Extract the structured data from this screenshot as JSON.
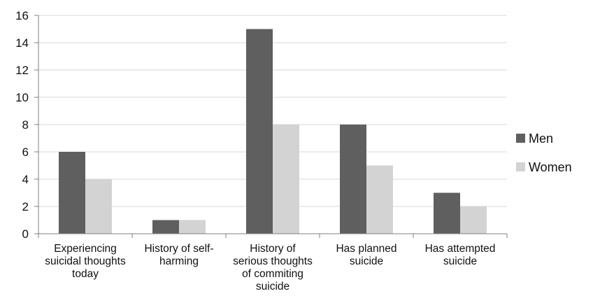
{
  "chart_data": {
    "type": "bar",
    "title": "",
    "xlabel": "",
    "ylabel": "",
    "ylim": [
      0,
      16
    ],
    "yticks": [
      "0",
      "2",
      "4",
      "6",
      "8",
      "10",
      "12",
      "14",
      "16"
    ],
    "grid": true,
    "legend_position": "right",
    "categories": [
      [
        "Experiencing",
        "suicidal thoughts",
        "today"
      ],
      [
        "History of self-",
        "harming"
      ],
      [
        "History of",
        "serious thoughts",
        "of commiting",
        "suicide"
      ],
      [
        "Has planned",
        "suicide"
      ],
      [
        "Has attempted",
        "suicide"
      ]
    ],
    "series": [
      {
        "name": "Men",
        "color": "#5f5f5f",
        "values": [
          6,
          1,
          15,
          8,
          3
        ]
      },
      {
        "name": "Women",
        "color": "#d3d3d3",
        "values": [
          4,
          1,
          8,
          5,
          2
        ]
      }
    ]
  }
}
